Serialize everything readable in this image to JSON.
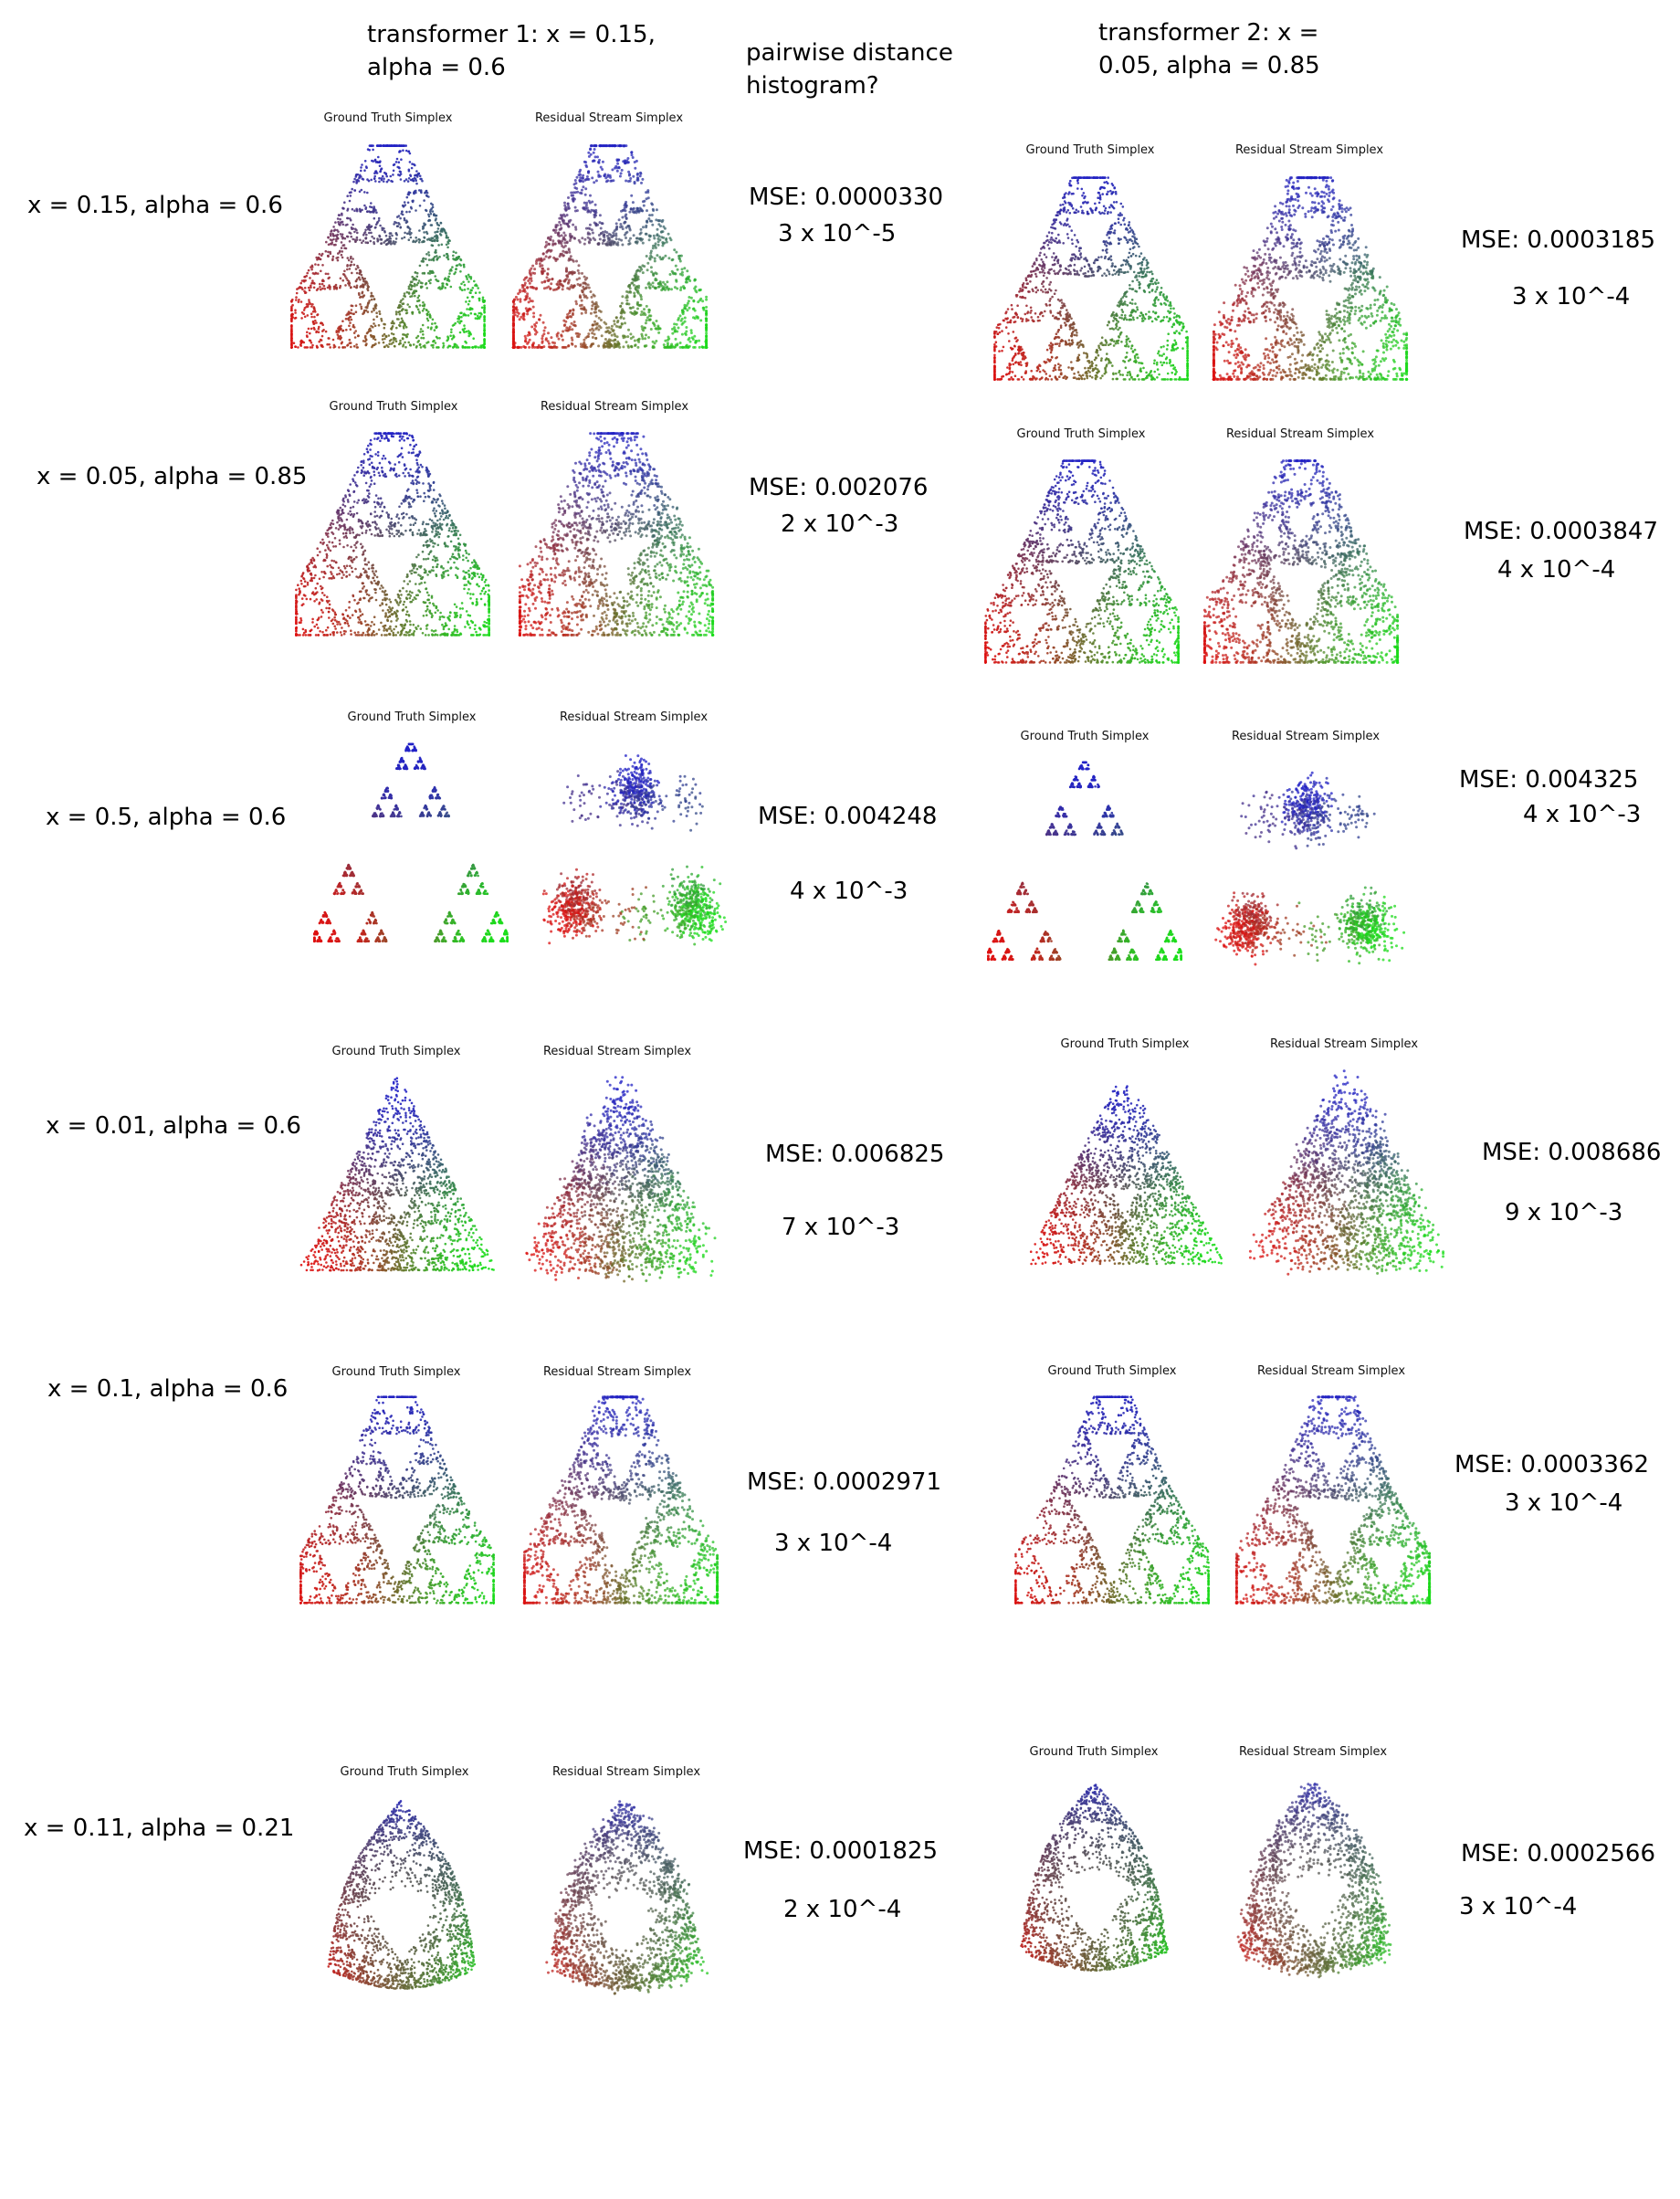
{
  "header": {
    "t1_line1": "transformer 1: x = 0.15,",
    "t1_line2": "alpha = 0.6",
    "hist_line1": "pairwise distance",
    "hist_line2": "histogram?",
    "t2_line1": "transformer 2: x =",
    "t2_line2": "0.05, alpha = 0.85"
  },
  "plot_titles": {
    "gt": "Ground Truth Simplex",
    "rs": "Residual Stream Simplex"
  },
  "colors": {
    "vertex_top": "#2020c8",
    "vertex_left": "#e01010",
    "vertex_right": "#18e018"
  },
  "rows": [
    {
      "label": "x = 0.15, alpha = 0.6",
      "shape": "cusp",
      "t1": {
        "mse": "MSE: 0.0000330",
        "approx": "3 x 10^-5"
      },
      "t2": {
        "mse": "MSE: 0.0003185",
        "approx": "3 x 10^-4"
      }
    },
    {
      "label": "x = 0.05, alpha = 0.85",
      "shape": "cusp-soft",
      "t1": {
        "mse": "MSE: 0.002076",
        "approx": "2 x 10^-3"
      },
      "t2": {
        "mse": "MSE: 0.0003847",
        "approx": "4 x 10^-4"
      }
    },
    {
      "label": "x = 0.5, alpha = 0.6",
      "shape": "tree",
      "t1": {
        "mse": "MSE: 0.004248",
        "approx": "4 x 10^-3"
      },
      "t2": {
        "mse": "MSE: 0.004325",
        "approx": "4 x 10^-3"
      }
    },
    {
      "label": "x = 0.01, alpha = 0.6",
      "shape": "triangle",
      "t1": {
        "mse": "MSE: 0.006825",
        "approx": "7 x 10^-3"
      },
      "t2": {
        "mse": "MSE: 0.008686",
        "approx": "9 x 10^-3"
      }
    },
    {
      "label": "x = 0.1, alpha = 0.6",
      "shape": "cusp",
      "t1": {
        "mse": "MSE: 0.0002971",
        "approx": "3 x 10^-4"
      },
      "t2": {
        "mse": "MSE: 0.0003362",
        "approx": "3 x 10^-4"
      }
    },
    {
      "label": "x = 0.11, alpha = 0.21",
      "shape": "blob",
      "t1": {
        "mse": "MSE: 0.0001825",
        "approx": "2 x 10^-4"
      },
      "t2": {
        "mse": "MSE: 0.0002566",
        "approx": "3 x 10^-4"
      }
    }
  ]
}
